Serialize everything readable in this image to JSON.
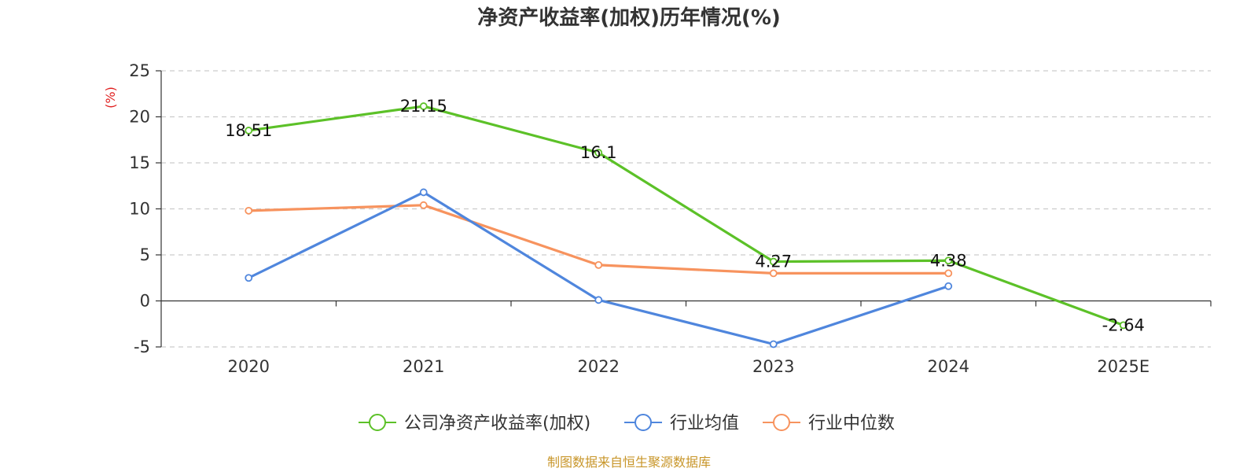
{
  "chart_data": {
    "type": "line",
    "title": "净资产收益率(加权)历年情况(%)",
    "unit_label": "(%)",
    "categories": [
      "2020",
      "2021",
      "2022",
      "2023",
      "2024",
      "2025E"
    ],
    "ylim": [
      -5,
      25
    ],
    "yticks": [
      -5,
      0,
      5,
      10,
      15,
      20,
      25
    ],
    "grid": true,
    "legend_position": "bottom-center",
    "series": [
      {
        "name": "公司净资产收益率(加权)",
        "color": "#5cc128",
        "values": [
          18.51,
          21.15,
          16.1,
          4.27,
          4.38,
          -2.64
        ],
        "labels": [
          "18.51",
          "21.15",
          "16.1",
          "4.27",
          "4.38",
          "-2.64"
        ]
      },
      {
        "name": "行业均值",
        "color": "#4f86dd",
        "values": [
          2.5,
          11.8,
          0.1,
          -4.7,
          1.6,
          null
        ]
      },
      {
        "name": "行业中位数",
        "color": "#f7935e",
        "values": [
          9.8,
          10.4,
          3.9,
          3.0,
          3.0,
          null
        ]
      }
    ]
  },
  "source": "制图数据来自恒生聚源数据库",
  "colors": {
    "axis": "#333333",
    "grid": "#cccccc",
    "unit": "#e02020",
    "source": "#c8962a"
  }
}
